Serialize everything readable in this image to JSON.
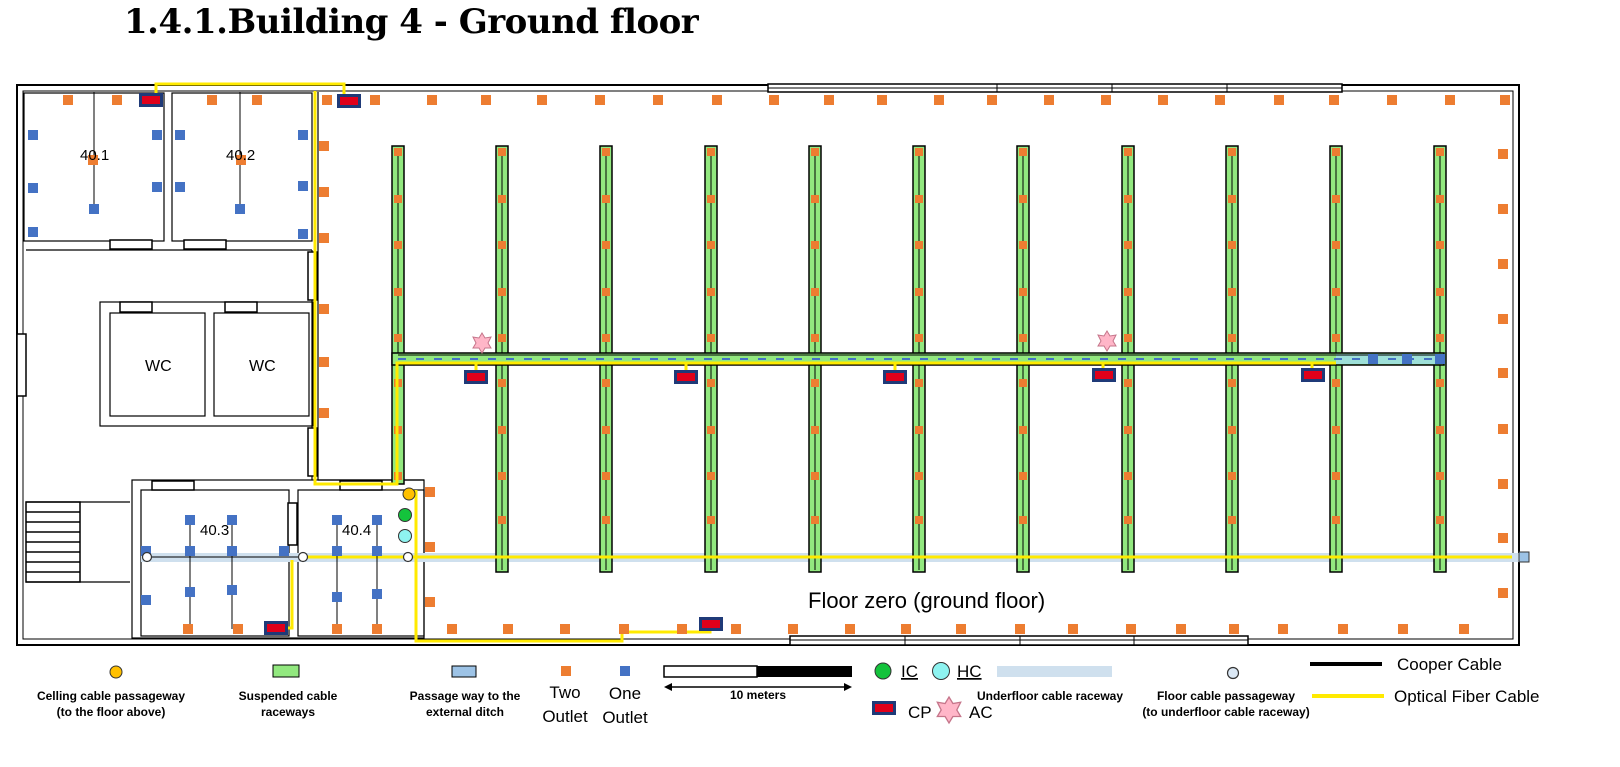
{
  "heading": "1.4.1.Building 4 - Ground floor",
  "rooms": {
    "r401": "40.1",
    "r402": "40.2",
    "r403": "40.3",
    "r404": "40.4",
    "wc1": "WC",
    "wc2": "WC"
  },
  "floor_label": "Floor zero (ground floor)",
  "legend": {
    "ceiling_line1": "Celling cable passageway",
    "ceiling_line2": "(to the floor above)",
    "suspended_line1": "Suspended cable",
    "suspended_line2": "raceways",
    "passage_line1": "Passage way to the",
    "passage_line2": "external ditch",
    "two_outlet_line1": "Two",
    "two_outlet_line2": "Outlet",
    "one_outlet_line1": "One",
    "one_outlet_line2": "Outlet",
    "scale": "10 meters",
    "ic": "IC",
    "hc": "HC",
    "underfloor": "Underfloor cable raceway",
    "cp": "CP",
    "ac": "AC",
    "floor_pass_line1": "Floor cable passageway",
    "floor_pass_line2": "(to underfloor cable raceway)",
    "copper": "Cooper Cable",
    "fiber": "Optical Fiber Cable"
  },
  "colors": {
    "two_outlet": "#ed7d31",
    "one_outlet": "#4472c4",
    "suspended_raceway": "#92e87f",
    "fiber": "#ffea00",
    "underfloor": "#cfe0ee",
    "ic": "#14c33c",
    "hc": "#8ef3f0",
    "cp": "#e0001a",
    "ac": "#ffb6c8",
    "ceiling_pass": "#ffc000"
  }
}
